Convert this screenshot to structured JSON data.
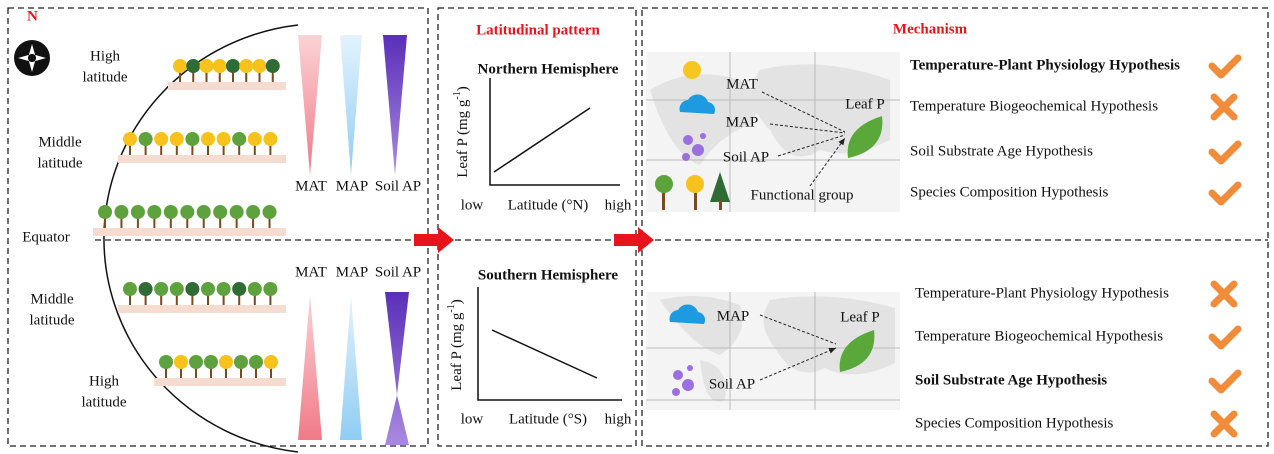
{
  "left": {
    "compass": "N",
    "north_high": [
      "High",
      "latitude"
    ],
    "north_middle": [
      "Middle",
      "latitude"
    ],
    "equator": "Equator",
    "south_middle": [
      "Middle",
      "latitude"
    ],
    "south_high": [
      "High",
      "latitude"
    ],
    "top_drivers": [
      "MAT",
      "MAP",
      "Soil AP"
    ],
    "bottom_drivers": [
      "MAT",
      "MAP",
      "Soil AP"
    ]
  },
  "pattern": {
    "title": "Latitudinal pattern",
    "north": {
      "title": "Northern Hemisphere",
      "y_label": {
        "text": "Leaf P (mg g",
        "sup": "-1",
        "end": ")"
      },
      "low": "low",
      "x_label": "Latitude (°N)",
      "high": "high"
    },
    "south": {
      "title": "Southern Hemisphere",
      "y_label": {
        "text": "Leaf P (mg g",
        "sup": "-1",
        "end": ")"
      },
      "low": "low",
      "x_label": "Latitude (°S)",
      "high": "high"
    }
  },
  "mechanism": {
    "title": "Mechanism",
    "north": {
      "labels": {
        "mat": "MAT",
        "map": "MAP",
        "soil": "Soil AP",
        "group": "Functional group",
        "leaf": "Leaf P"
      },
      "hypotheses": [
        {
          "text": "Temperature-Plant Physiology Hypothesis",
          "bold": true,
          "supported": true
        },
        {
          "text": "Temperature Biogeochemical Hypothesis",
          "bold": false,
          "supported": false
        },
        {
          "text": "Soil Substrate Age Hypothesis",
          "bold": false,
          "supported": true
        },
        {
          "text": "Species Composition Hypothesis",
          "bold": false,
          "supported": true
        }
      ]
    },
    "south": {
      "labels": {
        "map": "MAP",
        "soil": "Soil AP",
        "leaf": "Leaf P"
      },
      "hypotheses": [
        {
          "text": "Temperature-Plant Physiology Hypothesis",
          "bold": false,
          "supported": false
        },
        {
          "text": "Temperature Biogeochemical Hypothesis",
          "bold": false,
          "supported": true
        },
        {
          "text": "Soil Substrate Age Hypothesis",
          "bold": true,
          "supported": true
        },
        {
          "text": "Species Composition Hypothesis",
          "bold": false,
          "supported": false
        }
      ]
    }
  }
}
